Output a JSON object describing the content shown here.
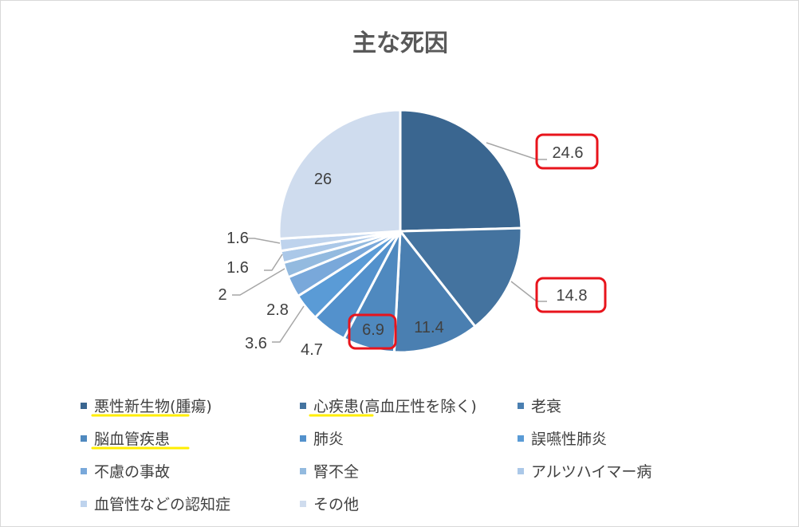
{
  "chart_data": {
    "type": "pie",
    "title": "主な死因",
    "categories": [
      "悪性新生物(腫瘍)",
      "心疾患(高血圧性を除く)",
      "老衰",
      "脳血管疾患",
      "肺炎",
      "誤嚥性肺炎",
      "不慮の事故",
      "腎不全",
      "アルツハイマー病",
      "血管性などの認知症",
      "その他"
    ],
    "values": [
      24.6,
      14.8,
      11.4,
      6.9,
      4.7,
      3.6,
      2.8,
      2,
      1.6,
      1.6,
      26
    ],
    "value_labels": [
      "24.6",
      "14.8",
      "11.4",
      "6.9",
      "4.7",
      "3.6",
      "2.8",
      "2",
      "1.6",
      "1.6",
      "26"
    ],
    "colors": [
      "#3a6690",
      "#44739f",
      "#4a7fb1",
      "#4f89bf",
      "#5391cc",
      "#5a9bd6",
      "#79a8da",
      "#93badf",
      "#abc8e8",
      "#bed3ed",
      "#cfdcee"
    ],
    "legend_position": "bottom",
    "highlighted": [
      "24.6",
      "14.8",
      "6.9"
    ],
    "underlined_legend": [
      "悪性新生物(腫瘍)",
      "心疾患(高血圧性を除く)",
      "脳血管疾患"
    ]
  }
}
